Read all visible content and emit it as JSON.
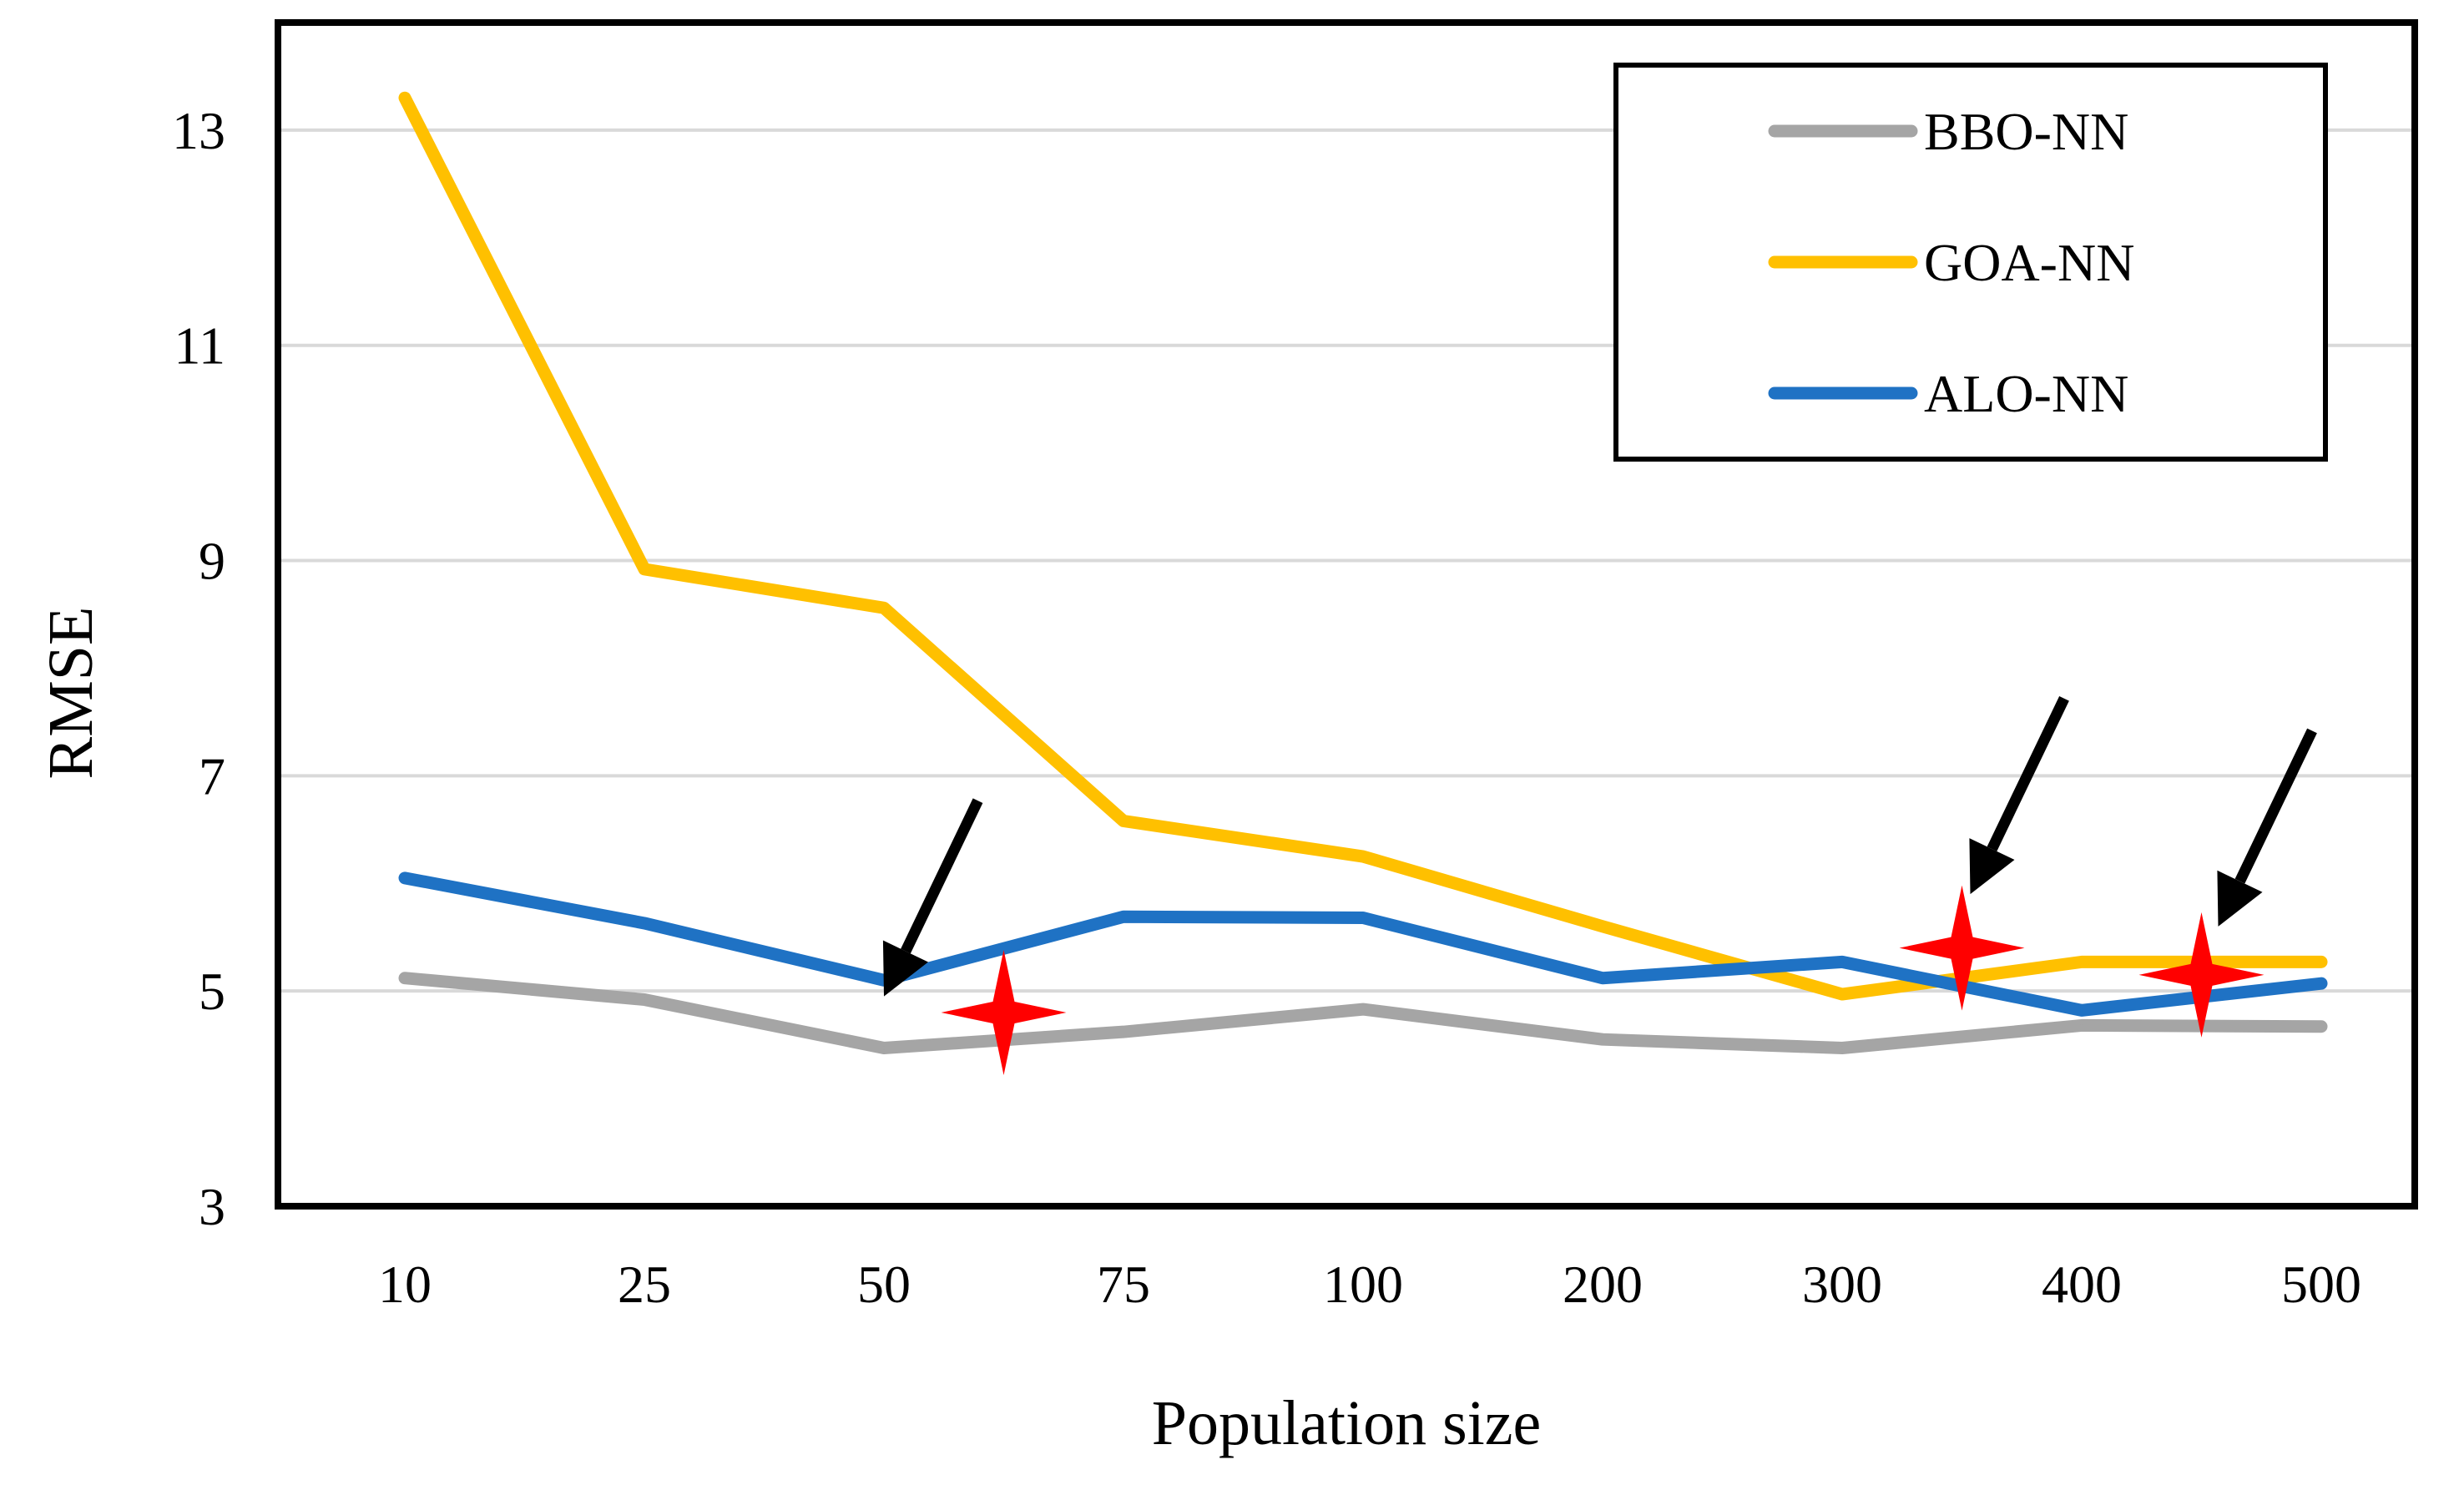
{
  "chart_data": {
    "type": "line",
    "title": "",
    "xlabel": "Population size",
    "ylabel": "RMSE",
    "categories": [
      "10",
      "25",
      "50",
      "75",
      "100",
      "200",
      "300",
      "400",
      "500"
    ],
    "ylim": [
      3,
      14
    ],
    "yticks": [
      "3",
      "5",
      "7",
      "9",
      "11",
      "13"
    ],
    "grid": "horizontal",
    "legend_position": "top-right",
    "series": [
      {
        "name": "BBO-NN",
        "color": "#a5a5a5",
        "values": [
          5.12,
          4.92,
          4.47,
          4.62,
          4.83,
          4.55,
          4.47,
          4.68,
          4.67
        ]
      },
      {
        "name": "GOA-NN",
        "color": "#ffc000",
        "values": [
          13.3,
          8.92,
          8.56,
          6.58,
          6.25,
          5.6,
          4.97,
          5.27,
          5.27
        ]
      },
      {
        "name": "ALO-NN",
        "color": "#1f72c4",
        "values": [
          6.05,
          5.63,
          5.1,
          5.69,
          5.68,
          5.12,
          5.27,
          4.82,
          5.07
        ]
      }
    ],
    "annotations": [
      {
        "type": "star",
        "color": "#ff0000",
        "x_between": [
          "50",
          "75"
        ],
        "y": 4.8
      },
      {
        "type": "star",
        "color": "#ff0000",
        "x_between": [
          "300",
          "400"
        ],
        "y": 5.4
      },
      {
        "type": "star",
        "color": "#ff0000",
        "x_between": [
          "400",
          "500"
        ],
        "y": 5.15
      },
      {
        "type": "arrow",
        "color": "#000000",
        "points_to": "50"
      },
      {
        "type": "arrow",
        "color": "#000000",
        "points_to": "300-400"
      },
      {
        "type": "arrow",
        "color": "#000000",
        "points_to": "400-500"
      }
    ]
  }
}
